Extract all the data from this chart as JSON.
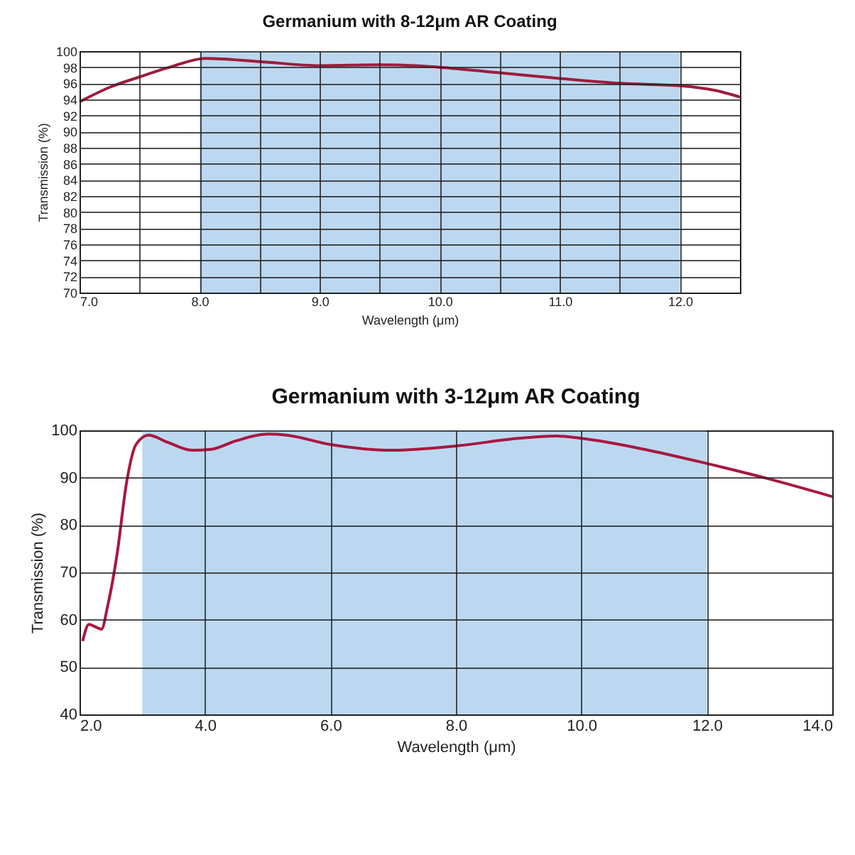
{
  "chart_data": [
    {
      "type": "line",
      "title": "Germanium with 8-12μm AR Coating",
      "xlabel": "Wavelength (μm)",
      "ylabel": "Transmission (%)",
      "x": [
        7.0,
        7.25,
        7.5,
        7.75,
        8.05,
        8.5,
        9.0,
        9.5,
        9.8,
        10.0,
        10.5,
        11.0,
        11.5,
        12.0,
        12.3,
        12.5
      ],
      "series": [
        {
          "color": "#9e1c3c",
          "values": [
            93.7,
            95.5,
            96.8,
            98.0,
            99.1,
            98.7,
            98.2,
            98.3,
            98.2,
            98.0,
            97.3,
            96.6,
            96.0,
            95.7,
            95.1,
            94.3
          ]
        }
      ],
      "xlim": [
        7.0,
        12.5
      ],
      "ylim": [
        70,
        100
      ],
      "xticks": [
        {
          "value": 7.0,
          "label": "7.0"
        },
        {
          "value": 7.5,
          "label": null
        },
        {
          "value": 8.0,
          "label": "8.0"
        },
        {
          "value": 8.5,
          "label": null
        },
        {
          "value": 9.0,
          "label": "9.0"
        },
        {
          "value": 9.5,
          "label": null
        },
        {
          "value": 10.0,
          "label": "10.0"
        },
        {
          "value": 10.5,
          "label": null
        },
        {
          "value": 11.0,
          "label": "11.0"
        },
        {
          "value": 11.5,
          "label": null
        },
        {
          "value": 12.0,
          "label": "12.0"
        },
        {
          "value": 12.5,
          "label": null
        }
      ],
      "yticks": [
        70,
        72,
        74,
        76,
        78,
        80,
        82,
        84,
        86,
        88,
        90,
        92,
        94,
        96,
        98,
        100
      ],
      "bands": [
        {
          "axis": "x",
          "from": 8,
          "to": 12,
          "color": "#bcd8f0"
        }
      ],
      "grid": true,
      "marker": "none",
      "line_style": "solid"
    },
    {
      "type": "line",
      "title": "Germanium with 3-12μm AR Coating",
      "xlabel": "Wavelength (μm)",
      "ylabel": "Transmission (%)",
      "x": [
        2.05,
        2.15,
        2.25,
        2.35,
        2.45,
        2.6,
        2.75,
        2.9,
        3.1,
        3.4,
        3.8,
        4.1,
        4.5,
        5.0,
        5.3,
        6.0,
        7.0,
        8.0,
        9.0,
        9.6,
        10.0,
        11.0,
        12.0,
        13.0,
        14.0
      ],
      "series": [
        {
          "color": "#a8183f",
          "values": [
            55.5,
            59,
            58.5,
            58,
            63,
            74,
            89,
            97,
            99,
            97.5,
            95.8,
            96,
            97.8,
            99.2,
            99,
            97,
            95.8,
            96.7,
            98.3,
            98.8,
            98.3,
            96,
            93,
            89.7,
            86
          ]
        }
      ],
      "xlim": [
        2.0,
        14.0
      ],
      "ylim": [
        40,
        100
      ],
      "xticks": [
        {
          "value": 2.0,
          "label": "2.0"
        },
        {
          "value": 4.0,
          "label": "4.0"
        },
        {
          "value": 6.0,
          "label": "6.0"
        },
        {
          "value": 8.0,
          "label": "8.0"
        },
        {
          "value": 10.0,
          "label": "10.0"
        },
        {
          "value": 12.0,
          "label": "12.0"
        },
        {
          "value": 14.0,
          "label": "14.0"
        }
      ],
      "yticks": [
        40,
        50,
        60,
        70,
        80,
        90,
        100
      ],
      "bands": [
        {
          "axis": "x",
          "from": 3,
          "to": 12,
          "color": "#bcd8f0"
        }
      ],
      "grid": true,
      "marker": "none",
      "line_style": "solid"
    }
  ]
}
